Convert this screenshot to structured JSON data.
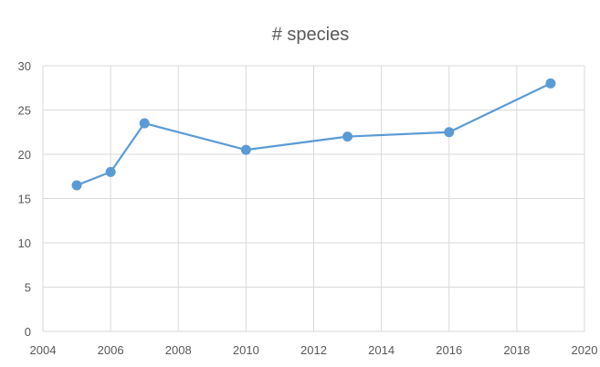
{
  "chart_data": {
    "type": "line",
    "title": "# species",
    "xlabel": "",
    "ylabel": "",
    "xlim": [
      2004,
      2020
    ],
    "ylim": [
      0,
      30
    ],
    "x_ticks": [
      "2004",
      "2006",
      "2008",
      "2010",
      "2012",
      "2014",
      "2016",
      "2018",
      "2020"
    ],
    "y_ticks": [
      "0",
      "5",
      "10",
      "15",
      "20",
      "25",
      "30"
    ],
    "grid": true,
    "legend": "none",
    "series": [
      {
        "color": "#5b9bd5",
        "points": [
          {
            "x": 2005,
            "y": 16.5
          },
          {
            "x": 2006,
            "y": 18
          },
          {
            "x": 2007,
            "y": 23.5
          },
          {
            "x": 2010,
            "y": 20.5
          },
          {
            "x": 2013,
            "y": 22
          },
          {
            "x": 2016,
            "y": 22.5
          },
          {
            "x": 2019,
            "y": 28
          }
        ]
      }
    ]
  }
}
